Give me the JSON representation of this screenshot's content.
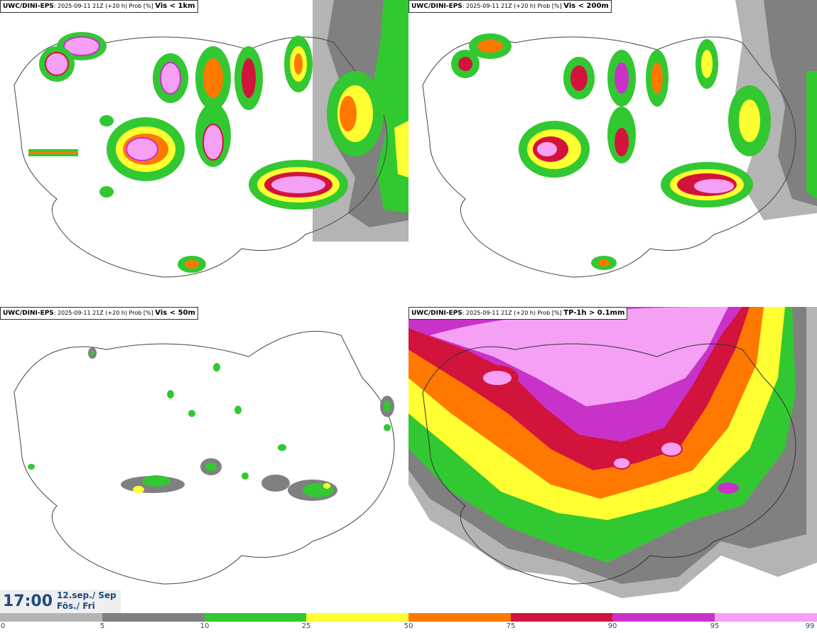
{
  "panels": [
    {
      "model": "UWC/DINI-EPS",
      "meta": ": 2025-09-11 21Z (+20 h) Prob [%] ",
      "variable": "Vis < 1km"
    },
    {
      "model": "UWC/DINI-EPS",
      "meta": ": 2025-09-11 21Z (+20 h) Prob [%] ",
      "variable": "Vis < 200m"
    },
    {
      "model": "UWC/DINI-EPS",
      "meta": ": 2025-09-11 21Z (+20 h) Prob [%] ",
      "variable": "Vis < 50m"
    },
    {
      "model": "UWC/DINI-EPS",
      "meta": ": 2025-09-11 21Z (+20 h) Prob [%] ",
      "variable": "TP-1h > 0.1mm"
    }
  ],
  "time": {
    "clock": "17:00",
    "date_line1": "12.sep./ Sep",
    "date_line2": "Fös./ Fri"
  },
  "legend": {
    "ticks": [
      "0",
      "5",
      "10",
      "25",
      "50",
      "75",
      "90",
      "95",
      "99"
    ],
    "colors": [
      "#ffffff",
      "#b4b4b4",
      "#808080",
      "#32c832",
      "#ffff32",
      "#ff7800",
      "#d2143c",
      "#c832c8",
      "#f5a0f5"
    ]
  }
}
